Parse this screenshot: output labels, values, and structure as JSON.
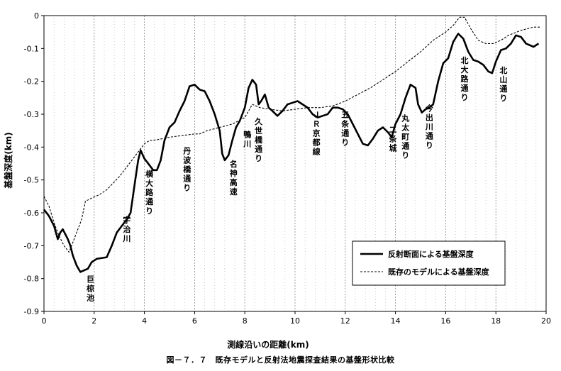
{
  "chart_data": {
    "type": "line",
    "title": "",
    "caption": "図－７．７　既存モデルと反射法地震探査結果の基盤形状比較",
    "xlabel": "測線沿いの距離(km)",
    "ylabel": "基盤深度(km)",
    "xlim": [
      0,
      20
    ],
    "ylim": [
      -0.9,
      0
    ],
    "x_ticks": [
      "0",
      "2",
      "4",
      "6",
      "8",
      "10",
      "12",
      "14",
      "16",
      "18",
      "20"
    ],
    "y_ticks": [
      "0",
      "-0.1",
      "-0.2",
      "-0.3",
      "-0.4",
      "-0.5",
      "-0.6",
      "-0.7",
      "-0.8",
      "-0.9"
    ],
    "grid": {
      "x_major": 2,
      "x_minor": 0.4,
      "style": "dotted",
      "y": false
    },
    "legend": {
      "placement": "bottom-right"
    },
    "series": [
      {
        "name": "反射断面による基盤深度",
        "style": "solid",
        "color": "#000000",
        "points": [
          [
            0.0,
            -0.59
          ],
          [
            0.2,
            -0.61
          ],
          [
            0.4,
            -0.64
          ],
          [
            0.55,
            -0.68
          ],
          [
            0.65,
            -0.66
          ],
          [
            0.75,
            -0.65
          ],
          [
            0.85,
            -0.665
          ],
          [
            0.95,
            -0.68
          ],
          [
            1.05,
            -0.7
          ],
          [
            1.15,
            -0.73
          ],
          [
            1.3,
            -0.76
          ],
          [
            1.45,
            -0.78
          ],
          [
            1.6,
            -0.775
          ],
          [
            1.75,
            -0.77
          ],
          [
            1.9,
            -0.75
          ],
          [
            2.1,
            -0.74
          ],
          [
            2.5,
            -0.735
          ],
          [
            2.7,
            -0.7
          ],
          [
            2.9,
            -0.66
          ],
          [
            3.1,
            -0.64
          ],
          [
            3.3,
            -0.62
          ],
          [
            3.45,
            -0.6
          ],
          [
            3.6,
            -0.52
          ],
          [
            3.75,
            -0.44
          ],
          [
            3.85,
            -0.41
          ],
          [
            4.0,
            -0.435
          ],
          [
            4.2,
            -0.455
          ],
          [
            4.35,
            -0.47
          ],
          [
            4.5,
            -0.47
          ],
          [
            4.65,
            -0.44
          ],
          [
            4.8,
            -0.38
          ],
          [
            5.0,
            -0.34
          ],
          [
            5.2,
            -0.325
          ],
          [
            5.4,
            -0.29
          ],
          [
            5.6,
            -0.26
          ],
          [
            5.8,
            -0.215
          ],
          [
            6.0,
            -0.21
          ],
          [
            6.2,
            -0.225
          ],
          [
            6.4,
            -0.23
          ],
          [
            6.6,
            -0.26
          ],
          [
            6.8,
            -0.3
          ],
          [
            7.0,
            -0.35
          ],
          [
            7.1,
            -0.42
          ],
          [
            7.2,
            -0.44
          ],
          [
            7.35,
            -0.425
          ],
          [
            7.5,
            -0.38
          ],
          [
            7.65,
            -0.34
          ],
          [
            7.8,
            -0.32
          ],
          [
            8.0,
            -0.28
          ],
          [
            8.15,
            -0.22
          ],
          [
            8.3,
            -0.195
          ],
          [
            8.45,
            -0.21
          ],
          [
            8.55,
            -0.27
          ],
          [
            8.65,
            -0.26
          ],
          [
            8.8,
            -0.24
          ],
          [
            8.95,
            -0.28
          ],
          [
            9.1,
            -0.29
          ],
          [
            9.3,
            -0.305
          ],
          [
            9.5,
            -0.29
          ],
          [
            9.7,
            -0.27
          ],
          [
            9.9,
            -0.265
          ],
          [
            10.1,
            -0.26
          ],
          [
            10.3,
            -0.27
          ],
          [
            10.5,
            -0.28
          ],
          [
            10.7,
            -0.3
          ],
          [
            10.9,
            -0.31
          ],
          [
            11.1,
            -0.305
          ],
          [
            11.3,
            -0.3
          ],
          [
            11.5,
            -0.28
          ],
          [
            11.7,
            -0.28
          ],
          [
            11.9,
            -0.285
          ],
          [
            12.1,
            -0.3
          ],
          [
            12.3,
            -0.33
          ],
          [
            12.5,
            -0.36
          ],
          [
            12.7,
            -0.39
          ],
          [
            12.9,
            -0.395
          ],
          [
            13.1,
            -0.375
          ],
          [
            13.3,
            -0.35
          ],
          [
            13.5,
            -0.34
          ],
          [
            13.7,
            -0.355
          ],
          [
            13.85,
            -0.37
          ],
          [
            14.0,
            -0.33
          ],
          [
            14.2,
            -0.3
          ],
          [
            14.4,
            -0.25
          ],
          [
            14.6,
            -0.21
          ],
          [
            14.8,
            -0.22
          ],
          [
            14.9,
            -0.27
          ],
          [
            15.05,
            -0.295
          ],
          [
            15.2,
            -0.285
          ],
          [
            15.35,
            -0.28
          ],
          [
            15.5,
            -0.27
          ],
          [
            15.7,
            -0.2
          ],
          [
            15.9,
            -0.145
          ],
          [
            16.1,
            -0.13
          ],
          [
            16.3,
            -0.08
          ],
          [
            16.5,
            -0.055
          ],
          [
            16.7,
            -0.07
          ],
          [
            16.9,
            -0.11
          ],
          [
            17.1,
            -0.135
          ],
          [
            17.3,
            -0.14
          ],
          [
            17.5,
            -0.15
          ],
          [
            17.7,
            -0.17
          ],
          [
            17.85,
            -0.175
          ],
          [
            18.0,
            -0.14
          ],
          [
            18.2,
            -0.105
          ],
          [
            18.4,
            -0.1
          ],
          [
            18.6,
            -0.085
          ],
          [
            18.8,
            -0.06
          ],
          [
            19.0,
            -0.065
          ],
          [
            19.2,
            -0.085
          ],
          [
            19.5,
            -0.095
          ],
          [
            19.7,
            -0.085
          ]
        ]
      },
      {
        "name": "既存のモデルによる基盤深度",
        "style": "dashed",
        "color": "#000000",
        "points": [
          [
            0.0,
            -0.55
          ],
          [
            0.2,
            -0.58
          ],
          [
            0.4,
            -0.63
          ],
          [
            0.6,
            -0.67
          ],
          [
            0.8,
            -0.7
          ],
          [
            1.0,
            -0.72
          ],
          [
            1.2,
            -0.68
          ],
          [
            1.5,
            -0.62
          ],
          [
            1.65,
            -0.565
          ],
          [
            1.9,
            -0.555
          ],
          [
            2.2,
            -0.545
          ],
          [
            2.5,
            -0.53
          ],
          [
            3.0,
            -0.49
          ],
          [
            3.4,
            -0.45
          ],
          [
            3.8,
            -0.41
          ],
          [
            4.0,
            -0.39
          ],
          [
            4.2,
            -0.38
          ],
          [
            4.5,
            -0.378
          ],
          [
            5.0,
            -0.37
          ],
          [
            5.5,
            -0.365
          ],
          [
            6.0,
            -0.36
          ],
          [
            6.2,
            -0.36
          ],
          [
            6.5,
            -0.35
          ],
          [
            7.0,
            -0.34
          ],
          [
            7.5,
            -0.33
          ],
          [
            8.0,
            -0.31
          ],
          [
            8.3,
            -0.27
          ],
          [
            8.6,
            -0.28
          ],
          [
            9.0,
            -0.285
          ],
          [
            9.5,
            -0.29
          ],
          [
            10.0,
            -0.285
          ],
          [
            10.5,
            -0.28
          ],
          [
            11.0,
            -0.28
          ],
          [
            11.5,
            -0.275
          ],
          [
            12.0,
            -0.26
          ],
          [
            12.5,
            -0.24
          ],
          [
            13.0,
            -0.22
          ],
          [
            13.5,
            -0.195
          ],
          [
            14.0,
            -0.17
          ],
          [
            14.5,
            -0.14
          ],
          [
            15.0,
            -0.11
          ],
          [
            15.5,
            -0.075
          ],
          [
            16.0,
            -0.05
          ],
          [
            16.3,
            -0.03
          ],
          [
            16.55,
            -0.005
          ],
          [
            16.75,
            -0.005
          ],
          [
            17.0,
            -0.04
          ],
          [
            17.3,
            -0.075
          ],
          [
            17.6,
            -0.085
          ],
          [
            17.9,
            -0.085
          ],
          [
            18.2,
            -0.075
          ],
          [
            18.5,
            -0.06
          ],
          [
            19.0,
            -0.045
          ],
          [
            19.5,
            -0.035
          ],
          [
            19.75,
            -0.035
          ]
        ]
      }
    ],
    "annotations": [
      {
        "text": "巨椋池",
        "x": 1.85,
        "y": -0.81
      },
      {
        "text": "宇治川",
        "x": 3.3,
        "y": -0.63
      },
      {
        "text": "横大路通り",
        "x": 4.2,
        "y": -0.49
      },
      {
        "text": "丹波橋通り",
        "x": 5.7,
        "y": -0.42
      },
      {
        "text": "名神高速",
        "x": 7.55,
        "y": -0.46
      },
      {
        "text": "鴨川",
        "x": 8.1,
        "y": -0.37
      },
      {
        "text": "久世橋通り",
        "x": 8.55,
        "y": -0.33
      },
      {
        "text": "ＪＲ京都線",
        "x": 10.85,
        "y": -0.31
      },
      {
        "text": "五条通り",
        "x": 12.0,
        "y": -0.31
      },
      {
        "text": "二条城",
        "x": 13.9,
        "y": -0.355
      },
      {
        "text": "丸太町通り",
        "x": 14.4,
        "y": -0.32
      },
      {
        "text": "今出川通り",
        "x": 15.35,
        "y": -0.29
      },
      {
        "text": "北大路通り",
        "x": 16.75,
        "y": -0.145
      },
      {
        "text": "北山通り",
        "x": 18.3,
        "y": -0.175
      }
    ]
  }
}
